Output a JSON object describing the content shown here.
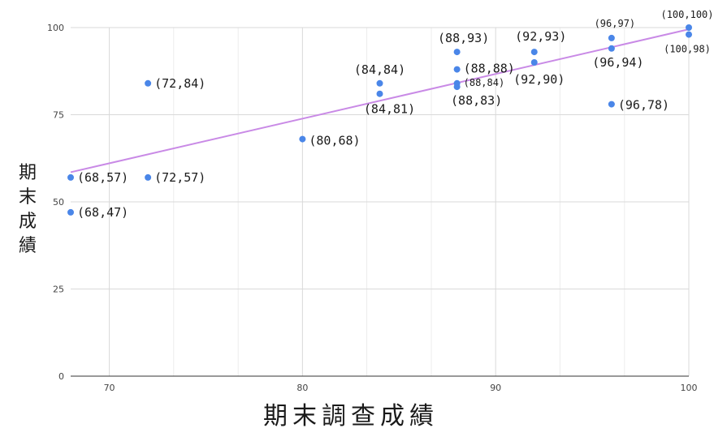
{
  "chart_data": {
    "type": "scatter",
    "title": "",
    "xlabel": "期末調查成績",
    "ylabel": "期末成績",
    "xlim": [
      68,
      100
    ],
    "ylim": [
      0,
      100
    ],
    "grid": true,
    "legend": "none",
    "x_ticks": [
      70,
      80,
      90,
      100
    ],
    "y_ticks": [
      0,
      25,
      50,
      75,
      100
    ],
    "series": [
      {
        "points": [
          {
            "x": 68,
            "y": 57,
            "label": "(68,57)"
          },
          {
            "x": 68,
            "y": 47,
            "label": "(68,47)"
          },
          {
            "x": 72,
            "y": 84,
            "label": "(72,84)"
          },
          {
            "x": 72,
            "y": 57,
            "label": "(72,57)"
          },
          {
            "x": 80,
            "y": 68,
            "label": "(80,68)"
          },
          {
            "x": 84,
            "y": 84,
            "label": "(84,84)"
          },
          {
            "x": 84,
            "y": 81,
            "label": "(84,81)"
          },
          {
            "x": 88,
            "y": 93,
            "label": "(88,93)"
          },
          {
            "x": 88,
            "y": 88,
            "label": "(88,88)"
          },
          {
            "x": 88,
            "y": 84,
            "label": "(88,84)"
          },
          {
            "x": 88,
            "y": 83,
            "label": "(88,83)"
          },
          {
            "x": 92,
            "y": 93,
            "label": "(92,93)"
          },
          {
            "x": 92,
            "y": 90,
            "label": "(92,90)"
          },
          {
            "x": 96,
            "y": 97,
            "label": "(96,97)"
          },
          {
            "x": 96,
            "y": 94,
            "label": "(96,94)"
          },
          {
            "x": 96,
            "y": 78,
            "label": "(96,78)"
          },
          {
            "x": 100,
            "y": 100,
            "label": "(100,100)"
          },
          {
            "x": 100,
            "y": 98,
            "label": "(100,98)"
          }
        ]
      }
    ],
    "trendline": {
      "type": "linear",
      "from": {
        "x": 68,
        "y": 58.5
      },
      "to": {
        "x": 100,
        "y": 99.5
      }
    },
    "colors": {
      "points": "#4a86e8",
      "trendline": "#c98ae6",
      "grid": "#d9d9d9",
      "axis": "#333333"
    }
  }
}
